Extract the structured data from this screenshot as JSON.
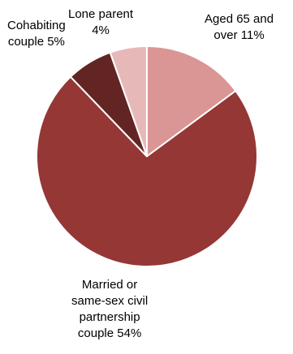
{
  "chart_data": {
    "type": "pie",
    "slices": [
      {
        "label_lines": [
          "Aged 65 and",
          "over 11%"
        ],
        "value": 11,
        "color": "#DA9694"
      },
      {
        "label_lines": [
          "Married or",
          "same-sex civil",
          "partnership",
          "couple 54%"
        ],
        "value": 54,
        "color": "#953735"
      },
      {
        "label_lines": [
          "Cohabiting",
          "couple 5%"
        ],
        "value": 5,
        "color": "#632523"
      },
      {
        "label_lines": [
          "Lone parent",
          "4%"
        ],
        "value": 4,
        "color": "#E6B9B8"
      }
    ],
    "title": "",
    "legend": "none",
    "slice_border_color": "#ffffff"
  }
}
